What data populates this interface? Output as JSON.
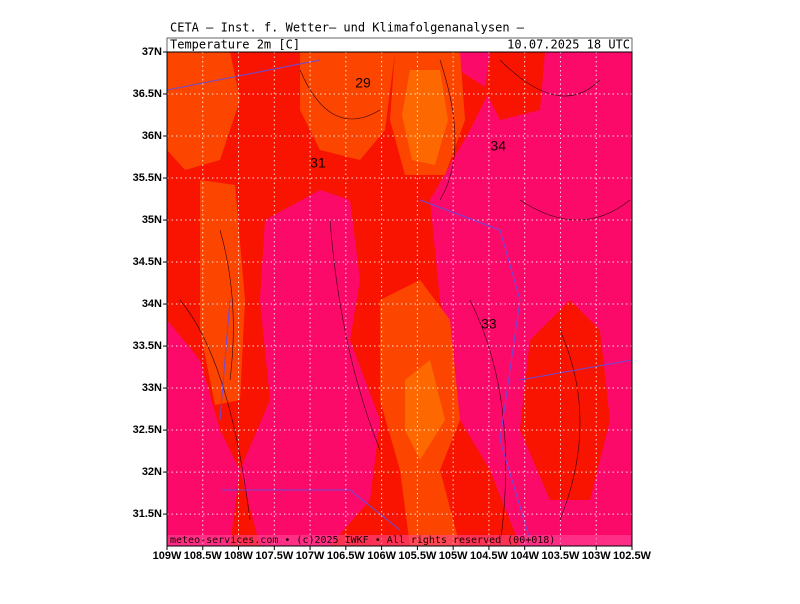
{
  "header": {
    "title": "CETA – Inst. f. Wetter– und Klimafolgenanalysen –",
    "variable": "Temperature 2m [C]",
    "time": "10.07.2025 18 UTC"
  },
  "map": {
    "lat_range": [
      31.12,
      37
    ],
    "lon_range": [
      -109,
      -102.5
    ],
    "lat_ticks": [
      {
        "value": 37,
        "label": "37N"
      },
      {
        "value": 36.5,
        "label": "36.5N"
      },
      {
        "value": 36,
        "label": "36N"
      },
      {
        "value": 35.5,
        "label": "35.5N"
      },
      {
        "value": 35,
        "label": "35N"
      },
      {
        "value": 34.5,
        "label": "34.5N"
      },
      {
        "value": 34,
        "label": "34N"
      },
      {
        "value": 33.5,
        "label": "33.5N"
      },
      {
        "value": 33,
        "label": "33N"
      },
      {
        "value": 32.5,
        "label": "32.5N"
      },
      {
        "value": 32,
        "label": "32N"
      },
      {
        "value": 31.5,
        "label": "31.5N"
      }
    ],
    "lon_ticks": [
      {
        "value": -109,
        "label": "109W"
      },
      {
        "value": -108.5,
        "label": "108.5W"
      },
      {
        "value": -108,
        "label": "108W"
      },
      {
        "value": -107.5,
        "label": "107.5W"
      },
      {
        "value": -107,
        "label": "107W"
      },
      {
        "value": -106.5,
        "label": "106.5W"
      },
      {
        "value": -106,
        "label": "106W"
      },
      {
        "value": -105.5,
        "label": "105.5W"
      },
      {
        "value": -105,
        "label": "105W"
      },
      {
        "value": -104.5,
        "label": "104.5W"
      },
      {
        "value": -104,
        "label": "104W"
      },
      {
        "value": -103.5,
        "label": "103.5W"
      },
      {
        "value": -103,
        "label": "103W"
      },
      {
        "value": -102.5,
        "label": "102.5W"
      }
    ],
    "contour_labels": [
      {
        "value": 29,
        "lon": -106.26,
        "lat": 36.62
      },
      {
        "value": 31,
        "lon": -106.89,
        "lat": 35.67
      },
      {
        "value": 34,
        "lon": -104.37,
        "lat": 35.87
      },
      {
        "value": 33,
        "lon": -104.5,
        "lat": 33.75
      }
    ]
  },
  "footer": "meteo-services.com • (c)2025 IWKF • All rights reserved (00+018)"
}
